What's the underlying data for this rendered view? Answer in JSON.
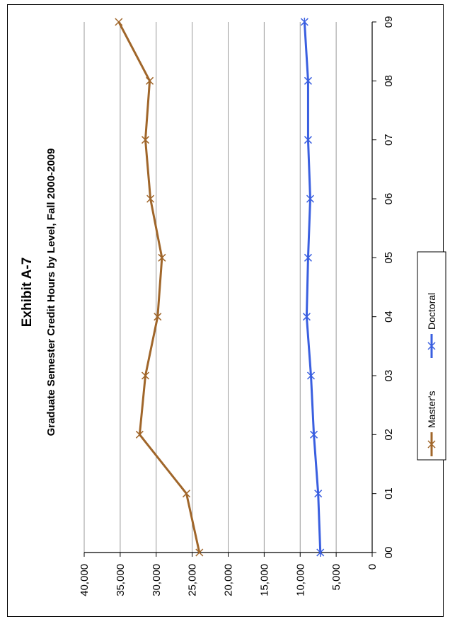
{
  "chart_data": {
    "type": "line",
    "title": "Exhibit A-7",
    "subtitle": "Graduate Semester Credit Hours by Level, Fall 2000-2009",
    "categories": [
      "00",
      "01",
      "02",
      "03",
      "04",
      "05",
      "06",
      "07",
      "08",
      "09"
    ],
    "ylim": [
      0,
      40000
    ],
    "y_ticks": [
      "0",
      "5,000",
      "10,000",
      "15,000",
      "20,000",
      "25,000",
      "30,000",
      "35,000",
      "40,000"
    ],
    "grid": true,
    "legend_position": "bottom",
    "orientation": "rotated-90",
    "series": [
      {
        "name": "Master's",
        "color": "#A0662A",
        "marker": "x",
        "values": [
          24000,
          25800,
          32300,
          31500,
          29800,
          29200,
          30800,
          31500,
          30900,
          35200
        ]
      },
      {
        "name": "Doctoral",
        "color": "#3A5FE0",
        "marker": "star",
        "values": [
          7200,
          7500,
          8100,
          8500,
          9100,
          8900,
          8600,
          8900,
          8900,
          9400
        ]
      }
    ]
  }
}
